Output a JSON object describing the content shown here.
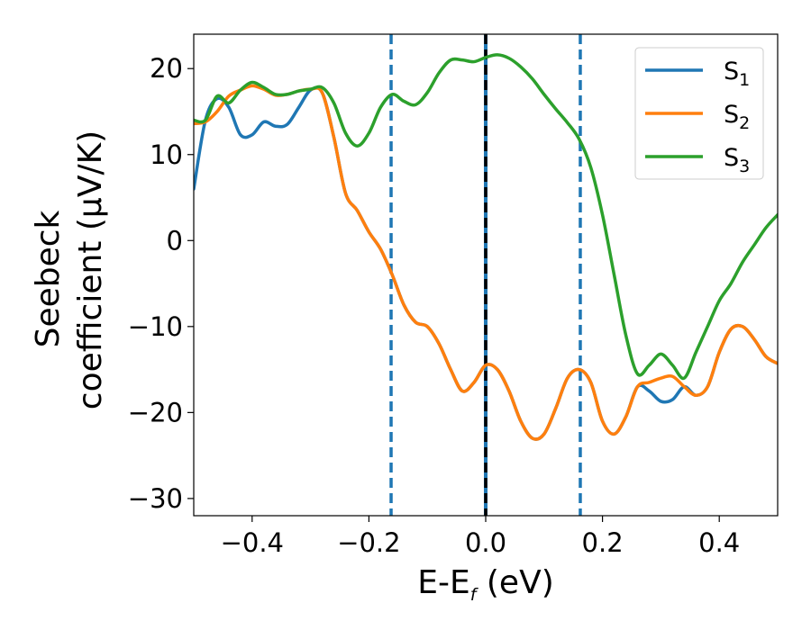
{
  "chart_data": {
    "type": "line",
    "title": "",
    "xlabel": {
      "main": "E-E",
      "subscript": "f",
      "suffix": " (eV)"
    },
    "ylabel": {
      "line1": "Seebeck",
      "line2": "coefficient  (μV/K)"
    },
    "xlim": [
      -0.5,
      0.5
    ],
    "ylim": [
      -32,
      24
    ],
    "grid": false,
    "legend_position": "top-right",
    "xticks": [
      {
        "value": -0.4,
        "label": "−0.4"
      },
      {
        "value": -0.2,
        "label": "−0.2"
      },
      {
        "value": 0.0,
        "label": "0.0"
      },
      {
        "value": 0.2,
        "label": "0.2"
      },
      {
        "value": 0.4,
        "label": "0.4"
      }
    ],
    "yticks": [
      {
        "value": 20,
        "label": "20"
      },
      {
        "value": 10,
        "label": "10"
      },
      {
        "value": 0,
        "label": "0"
      },
      {
        "value": -10,
        "label": "−10"
      },
      {
        "value": -20,
        "label": "−20"
      },
      {
        "value": -30,
        "label": "−30"
      }
    ],
    "vlines": [
      {
        "x": -0.162,
        "style": "dashed",
        "color": "#1f77b4"
      },
      {
        "x": 0.0,
        "style": "solid",
        "color": "#1f77b4"
      },
      {
        "x": 0.0,
        "style": "dashed",
        "color": "#000000"
      },
      {
        "x": 0.162,
        "style": "dashed",
        "color": "#1f77b4"
      }
    ],
    "series": [
      {
        "name": "S",
        "subscript": "1",
        "color": "#1f77b4",
        "points": [
          [
            -0.5,
            6
          ],
          [
            -0.48,
            14
          ],
          [
            -0.46,
            16.5
          ],
          [
            -0.44,
            15.5
          ],
          [
            -0.42,
            12.3
          ],
          [
            -0.4,
            12.3
          ],
          [
            -0.38,
            13.8
          ],
          [
            -0.36,
            13.3
          ],
          [
            -0.34,
            13.5
          ],
          [
            -0.32,
            15.5
          ],
          [
            -0.3,
            17.5
          ],
          [
            -0.28,
            17.2
          ],
          [
            -0.26,
            12
          ],
          [
            -0.24,
            5.5
          ],
          [
            -0.22,
            3.5
          ],
          [
            -0.2,
            1
          ],
          [
            -0.18,
            -1
          ],
          [
            -0.16,
            -4
          ],
          [
            -0.14,
            -7.5
          ],
          [
            -0.12,
            -9.5
          ],
          [
            -0.1,
            -10
          ],
          [
            -0.08,
            -12
          ],
          [
            -0.06,
            -15
          ],
          [
            -0.04,
            -17.5
          ],
          [
            -0.02,
            -16.5
          ],
          [
            0.0,
            -14.5
          ],
          [
            0.02,
            -15
          ],
          [
            0.04,
            -17.5
          ],
          [
            0.06,
            -21
          ],
          [
            0.08,
            -23
          ],
          [
            0.1,
            -22.5
          ],
          [
            0.12,
            -19.5
          ],
          [
            0.14,
            -16
          ],
          [
            0.16,
            -15
          ],
          [
            0.18,
            -16.5
          ],
          [
            0.2,
            -21
          ],
          [
            0.22,
            -22.5
          ],
          [
            0.24,
            -20.5
          ],
          [
            0.26,
            -17
          ],
          [
            0.28,
            -17.5
          ],
          [
            0.3,
            -18.7
          ],
          [
            0.32,
            -18.5
          ],
          [
            0.34,
            -17
          ],
          [
            0.36,
            -18
          ],
          [
            0.38,
            -17
          ],
          [
            0.4,
            -13
          ],
          [
            0.42,
            -10.3
          ],
          [
            0.44,
            -10
          ],
          [
            0.46,
            -11.5
          ],
          [
            0.48,
            -13.5
          ],
          [
            0.5,
            -14.3
          ]
        ]
      },
      {
        "name": "S",
        "subscript": "2",
        "color": "#ff7f0e",
        "points": [
          [
            -0.5,
            13.6
          ],
          [
            -0.48,
            13.8
          ],
          [
            -0.46,
            15
          ],
          [
            -0.44,
            16.8
          ],
          [
            -0.42,
            17.5
          ],
          [
            -0.4,
            18
          ],
          [
            -0.38,
            17.6
          ],
          [
            -0.36,
            16.9
          ],
          [
            -0.34,
            17.0
          ],
          [
            -0.32,
            17.4
          ],
          [
            -0.3,
            17.6
          ],
          [
            -0.28,
            17.2
          ],
          [
            -0.26,
            12
          ],
          [
            -0.24,
            5.5
          ],
          [
            -0.22,
            3.5
          ],
          [
            -0.2,
            1
          ],
          [
            -0.18,
            -1
          ],
          [
            -0.16,
            -4
          ],
          [
            -0.14,
            -7.5
          ],
          [
            -0.12,
            -9.5
          ],
          [
            -0.1,
            -10
          ],
          [
            -0.08,
            -12
          ],
          [
            -0.06,
            -15
          ],
          [
            -0.04,
            -17.5
          ],
          [
            -0.02,
            -16.5
          ],
          [
            0.0,
            -14.5
          ],
          [
            0.02,
            -15
          ],
          [
            0.04,
            -17.5
          ],
          [
            0.06,
            -21
          ],
          [
            0.08,
            -23
          ],
          [
            0.1,
            -22.5
          ],
          [
            0.12,
            -19.5
          ],
          [
            0.14,
            -16
          ],
          [
            0.16,
            -15
          ],
          [
            0.18,
            -16.5
          ],
          [
            0.2,
            -21
          ],
          [
            0.22,
            -22.5
          ],
          [
            0.24,
            -20.5
          ],
          [
            0.26,
            -17
          ],
          [
            0.28,
            -16.5
          ],
          [
            0.3,
            -16
          ],
          [
            0.32,
            -15.8
          ],
          [
            0.34,
            -17
          ],
          [
            0.36,
            -18
          ],
          [
            0.38,
            -17
          ],
          [
            0.4,
            -13
          ],
          [
            0.42,
            -10.3
          ],
          [
            0.44,
            -10
          ],
          [
            0.46,
            -11.5
          ],
          [
            0.48,
            -13.5
          ],
          [
            0.5,
            -14.3
          ]
        ]
      },
      {
        "name": "S",
        "subscript": "3",
        "color": "#2ca02c",
        "points": [
          [
            -0.5,
            14.0
          ],
          [
            -0.48,
            14.0
          ],
          [
            -0.46,
            16.8
          ],
          [
            -0.44,
            16.0
          ],
          [
            -0.42,
            17.5
          ],
          [
            -0.4,
            18.4
          ],
          [
            -0.38,
            17.8
          ],
          [
            -0.36,
            17.0
          ],
          [
            -0.34,
            17.0
          ],
          [
            -0.32,
            17.4
          ],
          [
            -0.3,
            17.6
          ],
          [
            -0.28,
            17.8
          ],
          [
            -0.26,
            16.0
          ],
          [
            -0.24,
            12.5
          ],
          [
            -0.22,
            11.0
          ],
          [
            -0.2,
            12.5
          ],
          [
            -0.18,
            15.5
          ],
          [
            -0.16,
            17.0
          ],
          [
            -0.14,
            16.2
          ],
          [
            -0.12,
            15.8
          ],
          [
            -0.1,
            17.2
          ],
          [
            -0.08,
            19.5
          ],
          [
            -0.06,
            21.0
          ],
          [
            -0.04,
            21.0
          ],
          [
            -0.02,
            20.8
          ],
          [
            0.0,
            21.3
          ],
          [
            0.02,
            21.6
          ],
          [
            0.04,
            21.2
          ],
          [
            0.06,
            20.2
          ],
          [
            0.08,
            18.8
          ],
          [
            0.1,
            17.0
          ],
          [
            0.12,
            15.3
          ],
          [
            0.14,
            13.7
          ],
          [
            0.16,
            11.8
          ],
          [
            0.18,
            8.5
          ],
          [
            0.2,
            3.0
          ],
          [
            0.22,
            -4.0
          ],
          [
            0.24,
            -11.0
          ],
          [
            0.26,
            -15.5
          ],
          [
            0.28,
            -14.5
          ],
          [
            0.3,
            -13.2
          ],
          [
            0.32,
            -14.5
          ],
          [
            0.34,
            -16.0
          ],
          [
            0.36,
            -13.0
          ],
          [
            0.38,
            -10.0
          ],
          [
            0.4,
            -7.0
          ],
          [
            0.42,
            -5.0
          ],
          [
            0.44,
            -2.5
          ],
          [
            0.46,
            -0.5
          ],
          [
            0.48,
            1.5
          ],
          [
            0.5,
            3.0
          ]
        ]
      }
    ]
  }
}
